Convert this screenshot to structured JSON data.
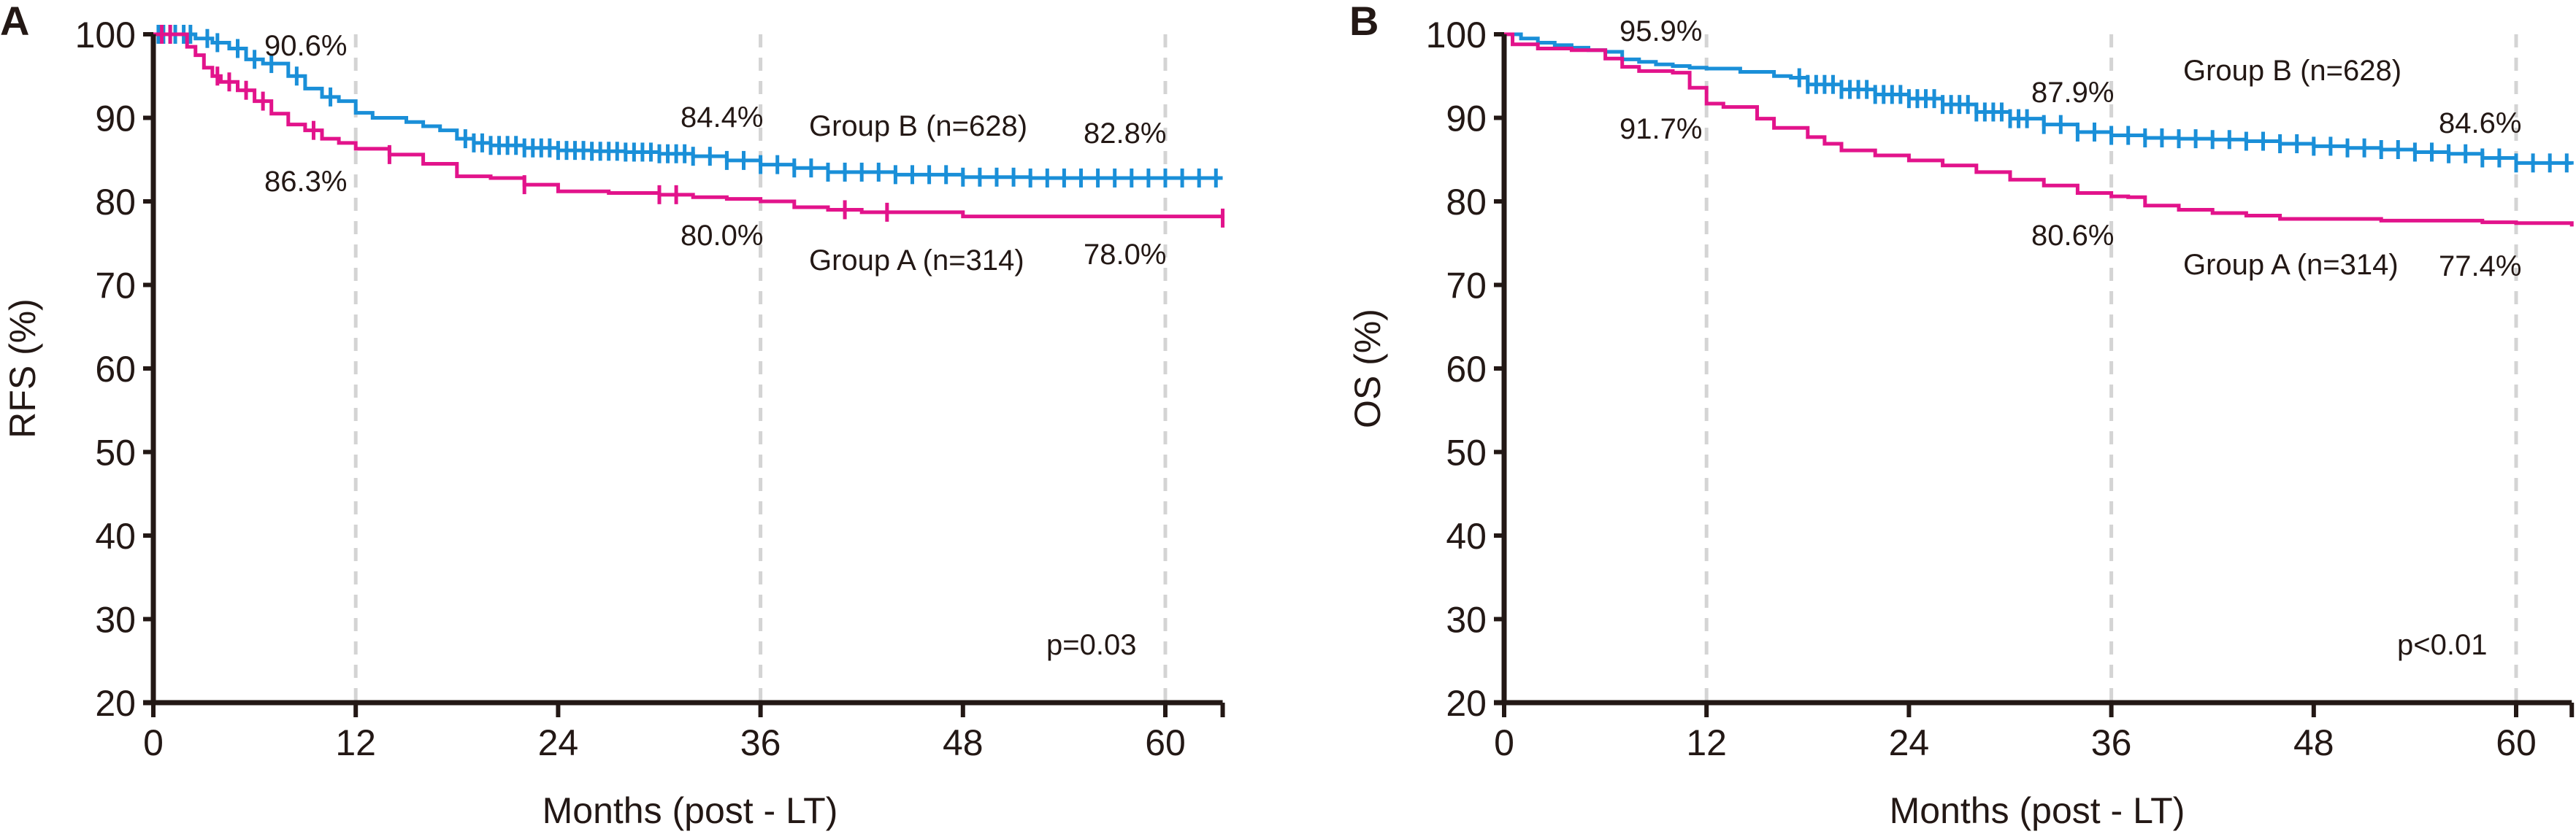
{
  "chart_data": [
    {
      "type": "line",
      "panel_label": "A",
      "title": "",
      "xlabel": "Months (post - LT)",
      "ylabel": "RFS (%)",
      "xlim": [
        0,
        63.4
      ],
      "ylim": [
        20,
        100
      ],
      "xticks": [
        0,
        12,
        24,
        36,
        48,
        60
      ],
      "yticks": [
        20,
        30,
        40,
        50,
        60,
        70,
        80,
        90,
        100
      ],
      "reference_lines_x": [
        12,
        36,
        60
      ],
      "grid": false,
      "p_value": "p=0.03",
      "series": [
        {
          "name": "Group B (n=628)",
          "color": "#1a8fd8",
          "x": [
            0,
            1.5,
            2.5,
            3.5,
            4.5,
            5.5,
            6.5,
            8,
            9,
            10,
            11,
            12,
            13,
            15,
            16,
            17,
            18,
            19,
            20,
            22,
            24,
            26,
            28,
            30,
            32,
            34,
            36,
            38,
            40,
            42,
            44,
            48,
            52,
            56,
            60,
            63.4
          ],
          "y": [
            100,
            100,
            99.5,
            99,
            98.3,
            97,
            96.5,
            95,
            93.5,
            92.5,
            92,
            90.6,
            90,
            89.5,
            89,
            88.5,
            87.5,
            87,
            86.7,
            86.4,
            86.1,
            86,
            85.9,
            85.7,
            85.4,
            84.9,
            84.4,
            84,
            83.5,
            83.5,
            83.2,
            82.9,
            82.8,
            82.8,
            82.8,
            82.8
          ],
          "censor_x": [
            0.3,
            0.6,
            1,
            1.3,
            1.8,
            2.2,
            3.2,
            3.8,
            5,
            6,
            7,
            8.5,
            10.5,
            18.5,
            19,
            19.5,
            20,
            20.5,
            21,
            21.5,
            22,
            22.5,
            23,
            23.5,
            24,
            24.5,
            25,
            25.5,
            26,
            26.5,
            27,
            27.5,
            28,
            28.5,
            29,
            29.5,
            30,
            30.5,
            31,
            31.5,
            32,
            33,
            34,
            35,
            36,
            37,
            38,
            39,
            40,
            41,
            42,
            43,
            44,
            45,
            46,
            47,
            48,
            49,
            50,
            51,
            52,
            53,
            54,
            55,
            56,
            57,
            58,
            59,
            60,
            61,
            62,
            63
          ]
        },
        {
          "name": "Group A (n=314)",
          "color": "#e2138b",
          "x": [
            0,
            2,
            2.5,
            3,
            3.5,
            4,
            5,
            6,
            7,
            8,
            9,
            10,
            11,
            12,
            14,
            16,
            18,
            20,
            22,
            24,
            27,
            30,
            32,
            34,
            36,
            38,
            40,
            42,
            48,
            63.4
          ],
          "y": [
            100,
            98.5,
            97.5,
            96,
            95,
            94.3,
            93.3,
            92,
            90.5,
            89.2,
            88.5,
            87.5,
            87,
            86.3,
            85.6,
            84.5,
            83,
            82.8,
            82,
            81.2,
            81,
            80.8,
            80.5,
            80.3,
            80.0,
            79.3,
            79,
            78.7,
            78.2,
            78.0
          ],
          "censor_x": [
            0.5,
            1,
            3.8,
            4.5,
            5.5,
            6.5,
            9.5,
            14,
            22,
            30,
            31,
            41,
            43.5,
            63.4
          ]
        }
      ],
      "annotations": [
        {
          "text": "90.6%",
          "x": 12,
          "position": "above-left"
        },
        {
          "text": "86.3%",
          "x": 12,
          "position": "below-left"
        },
        {
          "text": "84.4%",
          "x": 36,
          "position": "above-left"
        },
        {
          "text": "80.0%",
          "x": 36,
          "position": "below-left"
        },
        {
          "text": "82.8%",
          "x": 60,
          "position": "above-left"
        },
        {
          "text": "78.0%",
          "x": 60,
          "position": "below-left"
        },
        {
          "text": "Group B (n=628)",
          "x": 39,
          "position": "label"
        },
        {
          "text": "Group A (n=314)",
          "x": 39,
          "position": "label"
        }
      ]
    },
    {
      "type": "line",
      "panel_label": "B",
      "title": "",
      "xlabel": "Months (post - LT)",
      "ylabel": "OS (%)",
      "xlim": [
        0,
        63.3
      ],
      "ylim": [
        20,
        100
      ],
      "xticks": [
        0,
        12,
        24,
        36,
        48,
        60
      ],
      "yticks": [
        20,
        30,
        40,
        50,
        60,
        70,
        80,
        90,
        100
      ],
      "reference_lines_x": [
        12,
        36,
        60
      ],
      "grid": false,
      "p_value": "p<0.01",
      "series": [
        {
          "name": "Group B (n=628)",
          "color": "#1a8fd8",
          "x": [
            0,
            1,
            2,
            3,
            4,
            5,
            6,
            7,
            8,
            9,
            10,
            11,
            12,
            14,
            16,
            17,
            18,
            20,
            22,
            24,
            26,
            28,
            30,
            32,
            34,
            36,
            38,
            40,
            42,
            44,
            46,
            48,
            50,
            52,
            54,
            56,
            58,
            60,
            63.3
          ],
          "y": [
            100,
            99.5,
            99,
            98.7,
            98.4,
            98.1,
            97.9,
            97,
            96.7,
            96.4,
            96.2,
            96,
            95.9,
            95.5,
            95,
            94.8,
            94,
            93.4,
            92.8,
            92.3,
            91.6,
            90.7,
            89.9,
            89.2,
            88.3,
            87.9,
            87.6,
            87.5,
            87.4,
            87.2,
            86.9,
            86.6,
            86.4,
            86.2,
            85.9,
            85.7,
            85.2,
            84.6,
            84.4
          ],
          "censor_x": [
            17.5,
            18,
            18.5,
            19,
            19.5,
            20,
            20.5,
            21,
            21.5,
            22,
            22.5,
            23,
            23.5,
            24,
            24.5,
            25,
            25.5,
            26,
            26.5,
            27,
            27.5,
            28,
            28.5,
            29,
            29.5,
            30,
            30.5,
            31,
            32,
            33,
            34,
            35,
            36,
            37,
            38,
            39,
            40,
            41,
            42,
            43,
            44,
            45,
            46,
            47,
            48,
            49,
            50,
            51,
            52,
            53,
            54,
            55,
            56,
            57,
            58,
            59,
            60,
            61,
            62,
            63
          ]
        },
        {
          "name": "Group A (n=314)",
          "color": "#e2138b",
          "x": [
            0,
            0.5,
            2,
            4,
            6,
            7,
            8,
            10,
            11,
            12,
            13,
            15,
            16,
            18,
            19,
            20,
            22,
            24,
            26,
            28,
            30,
            32,
            34,
            36,
            37,
            38,
            40,
            42,
            44,
            46,
            52,
            58,
            60,
            63.3
          ],
          "y": [
            100,
            98.8,
            98.3,
            98.1,
            97.1,
            96.1,
            95.6,
            95.4,
            93.6,
            91.7,
            91.3,
            89.9,
            88.8,
            87.7,
            86.9,
            86.1,
            85.5,
            84.9,
            84.3,
            83.5,
            82.6,
            81.9,
            81.0,
            80.6,
            80.5,
            79.5,
            79.0,
            78.6,
            78.3,
            77.9,
            77.7,
            77.5,
            77.4,
            77.0
          ],
          "censor_x": []
        }
      ],
      "annotations": [
        {
          "text": "95.9%",
          "x": 12,
          "position": "above-left"
        },
        {
          "text": "91.7%",
          "x": 12,
          "position": "below-left"
        },
        {
          "text": "87.9%",
          "x": 36,
          "position": "above-left"
        },
        {
          "text": "80.6%",
          "x": 36,
          "position": "below-left"
        },
        {
          "text": "84.6%",
          "x": 60,
          "position": "above-left"
        },
        {
          "text": "77.4%",
          "x": 60,
          "position": "below-left"
        },
        {
          "text": "Group B (n=628)",
          "x": 40,
          "position": "label"
        },
        {
          "text": "Group A (n=314)",
          "x": 40,
          "position": "label"
        }
      ]
    }
  ]
}
